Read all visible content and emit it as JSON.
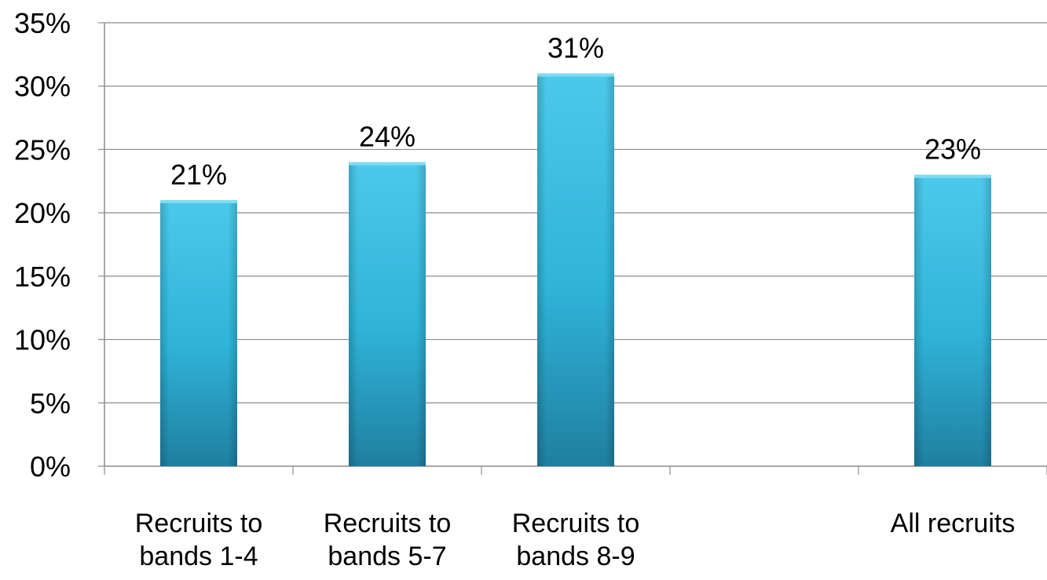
{
  "chart_data": {
    "type": "bar",
    "categories": [
      [
        "Recruits to",
        "bands 1-4"
      ],
      [
        "Recruits to",
        "bands 5-7"
      ],
      [
        "Recruits to",
        "bands 8-9"
      ],
      [
        ""
      ],
      [
        "All recruits"
      ]
    ],
    "values": [
      21,
      24,
      31,
      null,
      23
    ],
    "data_labels": [
      "21%",
      "24%",
      "31%",
      "",
      "23%"
    ],
    "ylim": [
      0,
      35
    ],
    "y_ticks": [
      0,
      5,
      10,
      15,
      20,
      25,
      30,
      35
    ],
    "y_tick_labels": [
      "0%",
      "5%",
      "10%",
      "15%",
      "20%",
      "25%",
      "30%",
      "35%"
    ],
    "grid": true,
    "colors": {
      "bar_top": "#4cc9ea",
      "bar_mid": "#2fb3d8",
      "bar_bottom": "#1f7fa0",
      "bar_cap": "#7fdcf4",
      "grid": "#8c8c8c",
      "axis": "#8c8c8c"
    }
  }
}
